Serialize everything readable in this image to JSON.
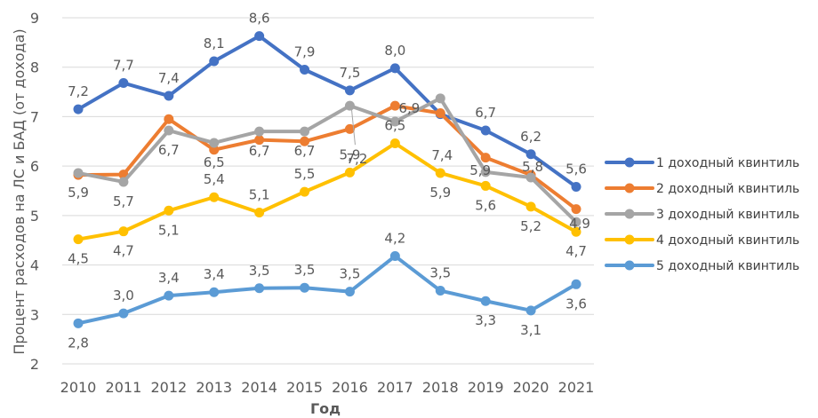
{
  "chart_data": {
    "type": "line",
    "title": "",
    "xlabel": "Год",
    "ylabel": "Процент расходов на ЛС и БАД (от дохода)",
    "x": [
      "2010",
      "2011",
      "2012",
      "2013",
      "2014",
      "2015",
      "2016",
      "2017",
      "2018",
      "2019",
      "2020",
      "2021"
    ],
    "ylim": [
      2,
      9
    ],
    "yticks": [
      "2",
      "3",
      "4",
      "5",
      "6",
      "7",
      "8",
      "9"
    ],
    "grid": true,
    "legend_position": "right",
    "series": [
      {
        "name": "1 доходный квинтиль",
        "color": "#4472C4",
        "values": [
          7.15,
          7.68,
          7.42,
          8.12,
          8.63,
          7.95,
          7.53,
          7.98,
          7.05,
          6.72,
          6.24,
          5.58
        ],
        "labels": [
          "7,2",
          "7,7",
          "7,4",
          "8,1",
          "8,6",
          "7,9",
          "7,5",
          "8,0",
          "",
          "6,7",
          "6,2",
          "5,6"
        ]
      },
      {
        "name": "2 доходный квинтиль",
        "color": "#ED7D31",
        "values": [
          5.82,
          5.83,
          6.95,
          6.33,
          6.53,
          6.5,
          6.75,
          7.22,
          7.07,
          6.17,
          5.82,
          5.13
        ],
        "labels": [
          "",
          "",
          "",
          "",
          "",
          "",
          "",
          "",
          "",
          "",
          "",
          ""
        ]
      },
      {
        "name": "3 доходный квинтиль",
        "color": "#A5A5A5",
        "values": [
          5.86,
          5.68,
          6.72,
          6.47,
          6.7,
          6.7,
          7.22,
          6.9,
          7.37,
          5.88,
          5.77,
          4.87
        ],
        "labels": [
          "5,9",
          "5,7",
          "6,7",
          "6,5",
          "6,7",
          "6,7",
          "7,2",
          "6,9",
          "7,4",
          "5,9",
          "5,8",
          "4,9"
        ]
      },
      {
        "name": "4 доходный квинтиль",
        "color": "#FFC000",
        "values": [
          4.52,
          4.68,
          5.1,
          5.37,
          5.06,
          5.48,
          5.87,
          6.46,
          5.86,
          5.6,
          5.18,
          4.67
        ],
        "labels": [
          "4,5",
          "4,7",
          "5,1",
          "5,4",
          "5,1",
          "5,5",
          "5,9",
          "6,5",
          "5,9",
          "5,6",
          "5,2",
          "4,7"
        ]
      },
      {
        "name": "5 доходный квинтиль",
        "color": "#5B9BD5",
        "values": [
          2.82,
          3.02,
          3.38,
          3.45,
          3.53,
          3.54,
          3.46,
          4.18,
          3.48,
          3.27,
          3.08,
          3.61
        ],
        "labels": [
          "2,8",
          "3,0",
          "3,4",
          "3,4",
          "3,5",
          "3,5",
          "3,5",
          "4,2",
          "3,5",
          "3,3",
          "3,1",
          "3,6"
        ]
      }
    ]
  }
}
